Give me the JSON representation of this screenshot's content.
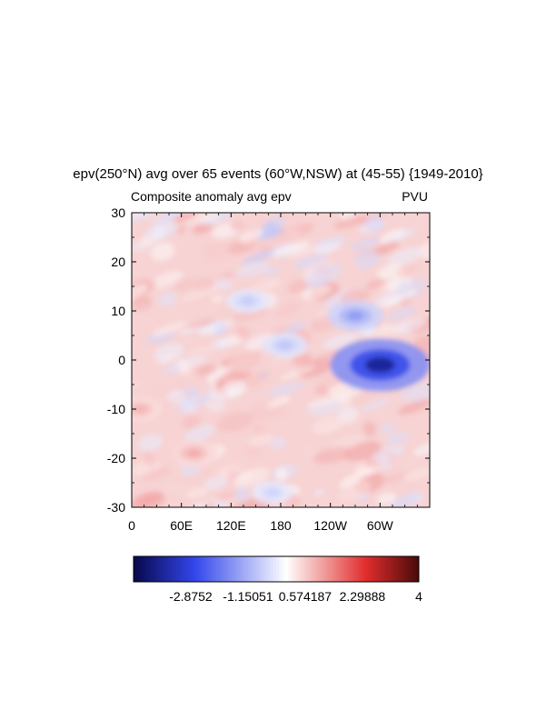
{
  "chart_data": {
    "type": "heatmap",
    "title": "epv(250°N) avg over 65 events (60°W,NSW) at (45-55) {1949-2010}",
    "left_label": "Composite anomaly avg epv",
    "right_label": "PVU",
    "x_ticks": [
      "0",
      "60E",
      "120E",
      "180",
      "120W",
      "60W"
    ],
    "y_ticks": [
      "30",
      "20",
      "10",
      "0",
      "-10",
      "-20",
      "-30"
    ],
    "xlim": [
      0,
      360
    ],
    "ylim": [
      -30,
      30
    ],
    "colorbar": {
      "min": -4.6,
      "max": 4,
      "labels": [
        "-2.8752",
        "-1.15051",
        "0.574187",
        "2.29888",
        "4"
      ],
      "colormap": "blue-white-red",
      "colors": {
        "low": "#08084a",
        "mid": "#ffffff",
        "high": "#4a0a0a"
      }
    },
    "features": [
      {
        "name": "negative anomaly",
        "lon": 300,
        "lat": -1,
        "value": -3.8
      },
      {
        "name": "negative anomaly",
        "lon": 270,
        "lat": 9,
        "value": -1.5
      },
      {
        "name": "negative anomaly",
        "lon": 185,
        "lat": 3,
        "value": -0.9
      },
      {
        "name": "negative anomaly",
        "lon": 140,
        "lat": 12,
        "value": -0.8
      },
      {
        "name": "negative anomaly",
        "lon": 170,
        "lat": -27,
        "value": -0.7
      },
      {
        "name": "positive anomaly",
        "lon": 75,
        "lat": -19,
        "value": 1.0
      },
      {
        "name": "positive anomaly",
        "lon": 10,
        "lat": -10,
        "value": 0.9
      }
    ]
  }
}
